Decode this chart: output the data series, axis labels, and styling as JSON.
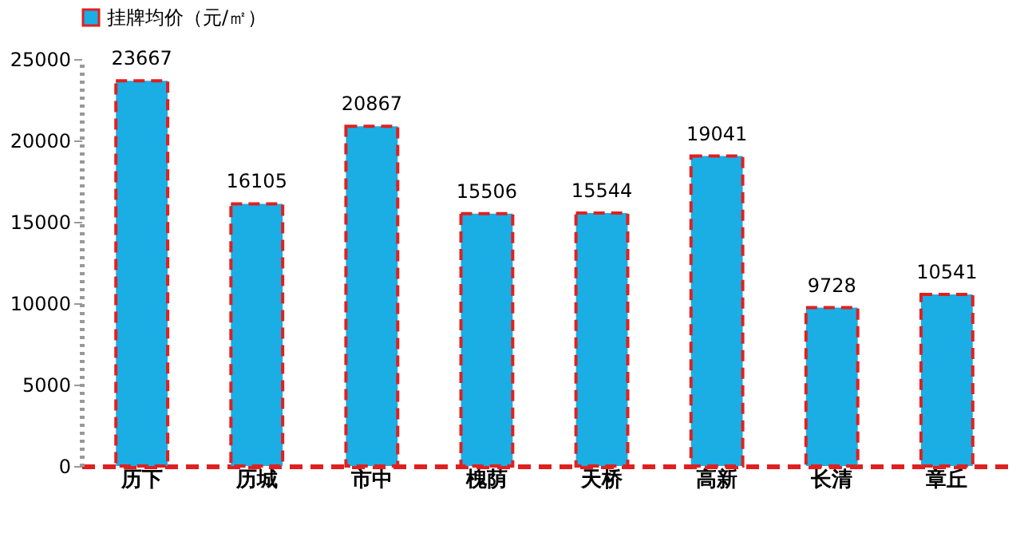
{
  "chart_data": {
    "type": "bar",
    "categories": [
      "历下",
      "历城",
      "市中",
      "槐荫",
      "天桥",
      "高新",
      "长清",
      "章丘"
    ],
    "series": [
      {
        "name": "挂牌均价（元/㎡）",
        "color": "#1aaee5",
        "values": [
          23667,
          16105,
          20867,
          15506,
          15544,
          19041,
          9728,
          10541
        ]
      }
    ],
    "ylim": [
      0,
      25000
    ],
    "yticks": [
      0,
      5000,
      10000,
      15000,
      20000,
      25000
    ],
    "grid": false,
    "legend": "top",
    "data_labels": true
  }
}
